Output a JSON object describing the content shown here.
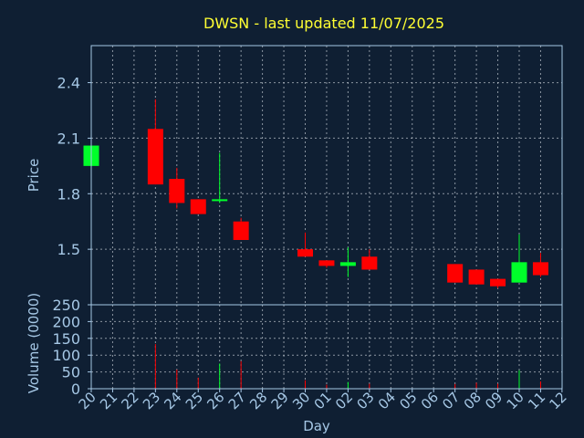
{
  "colors": {
    "background": "#0f1f33",
    "title": "#ffff33",
    "axis_text": "#a6c8e6",
    "frame": "#a6c8e6",
    "grid": "#c0c8d0",
    "up": "#00ff2a",
    "down": "#ff0000"
  },
  "chart_data": {
    "type": "candlestick",
    "title": "DWSN - last updated 11/07/2025",
    "xlabel": "Day",
    "price_panel": {
      "ylabel": "Price",
      "ylim": [
        1.2,
        2.6
      ],
      "yticks": [
        1.5,
        1.8,
        2.1,
        2.4
      ],
      "ytick_labels": [
        "1.5",
        "1.8",
        "2.1",
        "2.4"
      ],
      "grid": true
    },
    "volume_panel": {
      "ylabel": "Volume (0000)",
      "ylim": [
        0,
        250
      ],
      "yticks": [
        0,
        50,
        100,
        150,
        200,
        250
      ],
      "ytick_labels": [
        "0",
        "50",
        "100",
        "150",
        "200",
        "250"
      ],
      "grid": true
    },
    "x_tick_labels": [
      "20",
      "21",
      "22",
      "23",
      "24",
      "25",
      "26",
      "27",
      "28",
      "29",
      "30",
      "01",
      "02",
      "03",
      "04",
      "05",
      "06",
      "07",
      "08",
      "09",
      "10",
      "11",
      "12"
    ],
    "candles": [
      {
        "x": 0,
        "open": 1.95,
        "high": 2.06,
        "low": 1.95,
        "close": 2.06,
        "volume": 0
      },
      {
        "x": 3,
        "open": 2.15,
        "high": 2.31,
        "low": 1.85,
        "close": 1.85,
        "volume": 133
      },
      {
        "x": 4,
        "open": 1.88,
        "high": 1.94,
        "low": 1.72,
        "close": 1.75,
        "volume": 57
      },
      {
        "x": 5,
        "open": 1.77,
        "high": 1.77,
        "low": 1.69,
        "close": 1.69,
        "volume": 33
      },
      {
        "x": 6,
        "open": 1.76,
        "high": 2.02,
        "low": 1.75,
        "close": 1.77,
        "volume": 75
      },
      {
        "x": 7,
        "open": 1.65,
        "high": 1.67,
        "low": 1.55,
        "close": 1.55,
        "volume": 82
      },
      {
        "x": 10,
        "open": 1.5,
        "high": 1.59,
        "low": 1.46,
        "close": 1.46,
        "volume": 25
      },
      {
        "x": 11,
        "open": 1.44,
        "high": 1.44,
        "low": 1.4,
        "close": 1.41,
        "volume": 12
      },
      {
        "x": 12,
        "open": 1.41,
        "high": 1.51,
        "low": 1.35,
        "close": 1.43,
        "volume": 20
      },
      {
        "x": 13,
        "open": 1.46,
        "high": 1.5,
        "low": 1.39,
        "close": 1.39,
        "volume": 15
      },
      {
        "x": 17,
        "open": 1.42,
        "high": 1.42,
        "low": 1.32,
        "close": 1.32,
        "volume": 14
      },
      {
        "x": 18,
        "open": 1.39,
        "high": 1.39,
        "low": 1.31,
        "close": 1.31,
        "volume": 18
      },
      {
        "x": 19,
        "open": 1.34,
        "high": 1.34,
        "low": 1.29,
        "close": 1.3,
        "volume": 15
      },
      {
        "x": 20,
        "open": 1.32,
        "high": 1.58,
        "low": 1.32,
        "close": 1.43,
        "volume": 55
      },
      {
        "x": 21,
        "open": 1.43,
        "high": 1.48,
        "low": 1.35,
        "close": 1.36,
        "volume": 22
      }
    ]
  }
}
